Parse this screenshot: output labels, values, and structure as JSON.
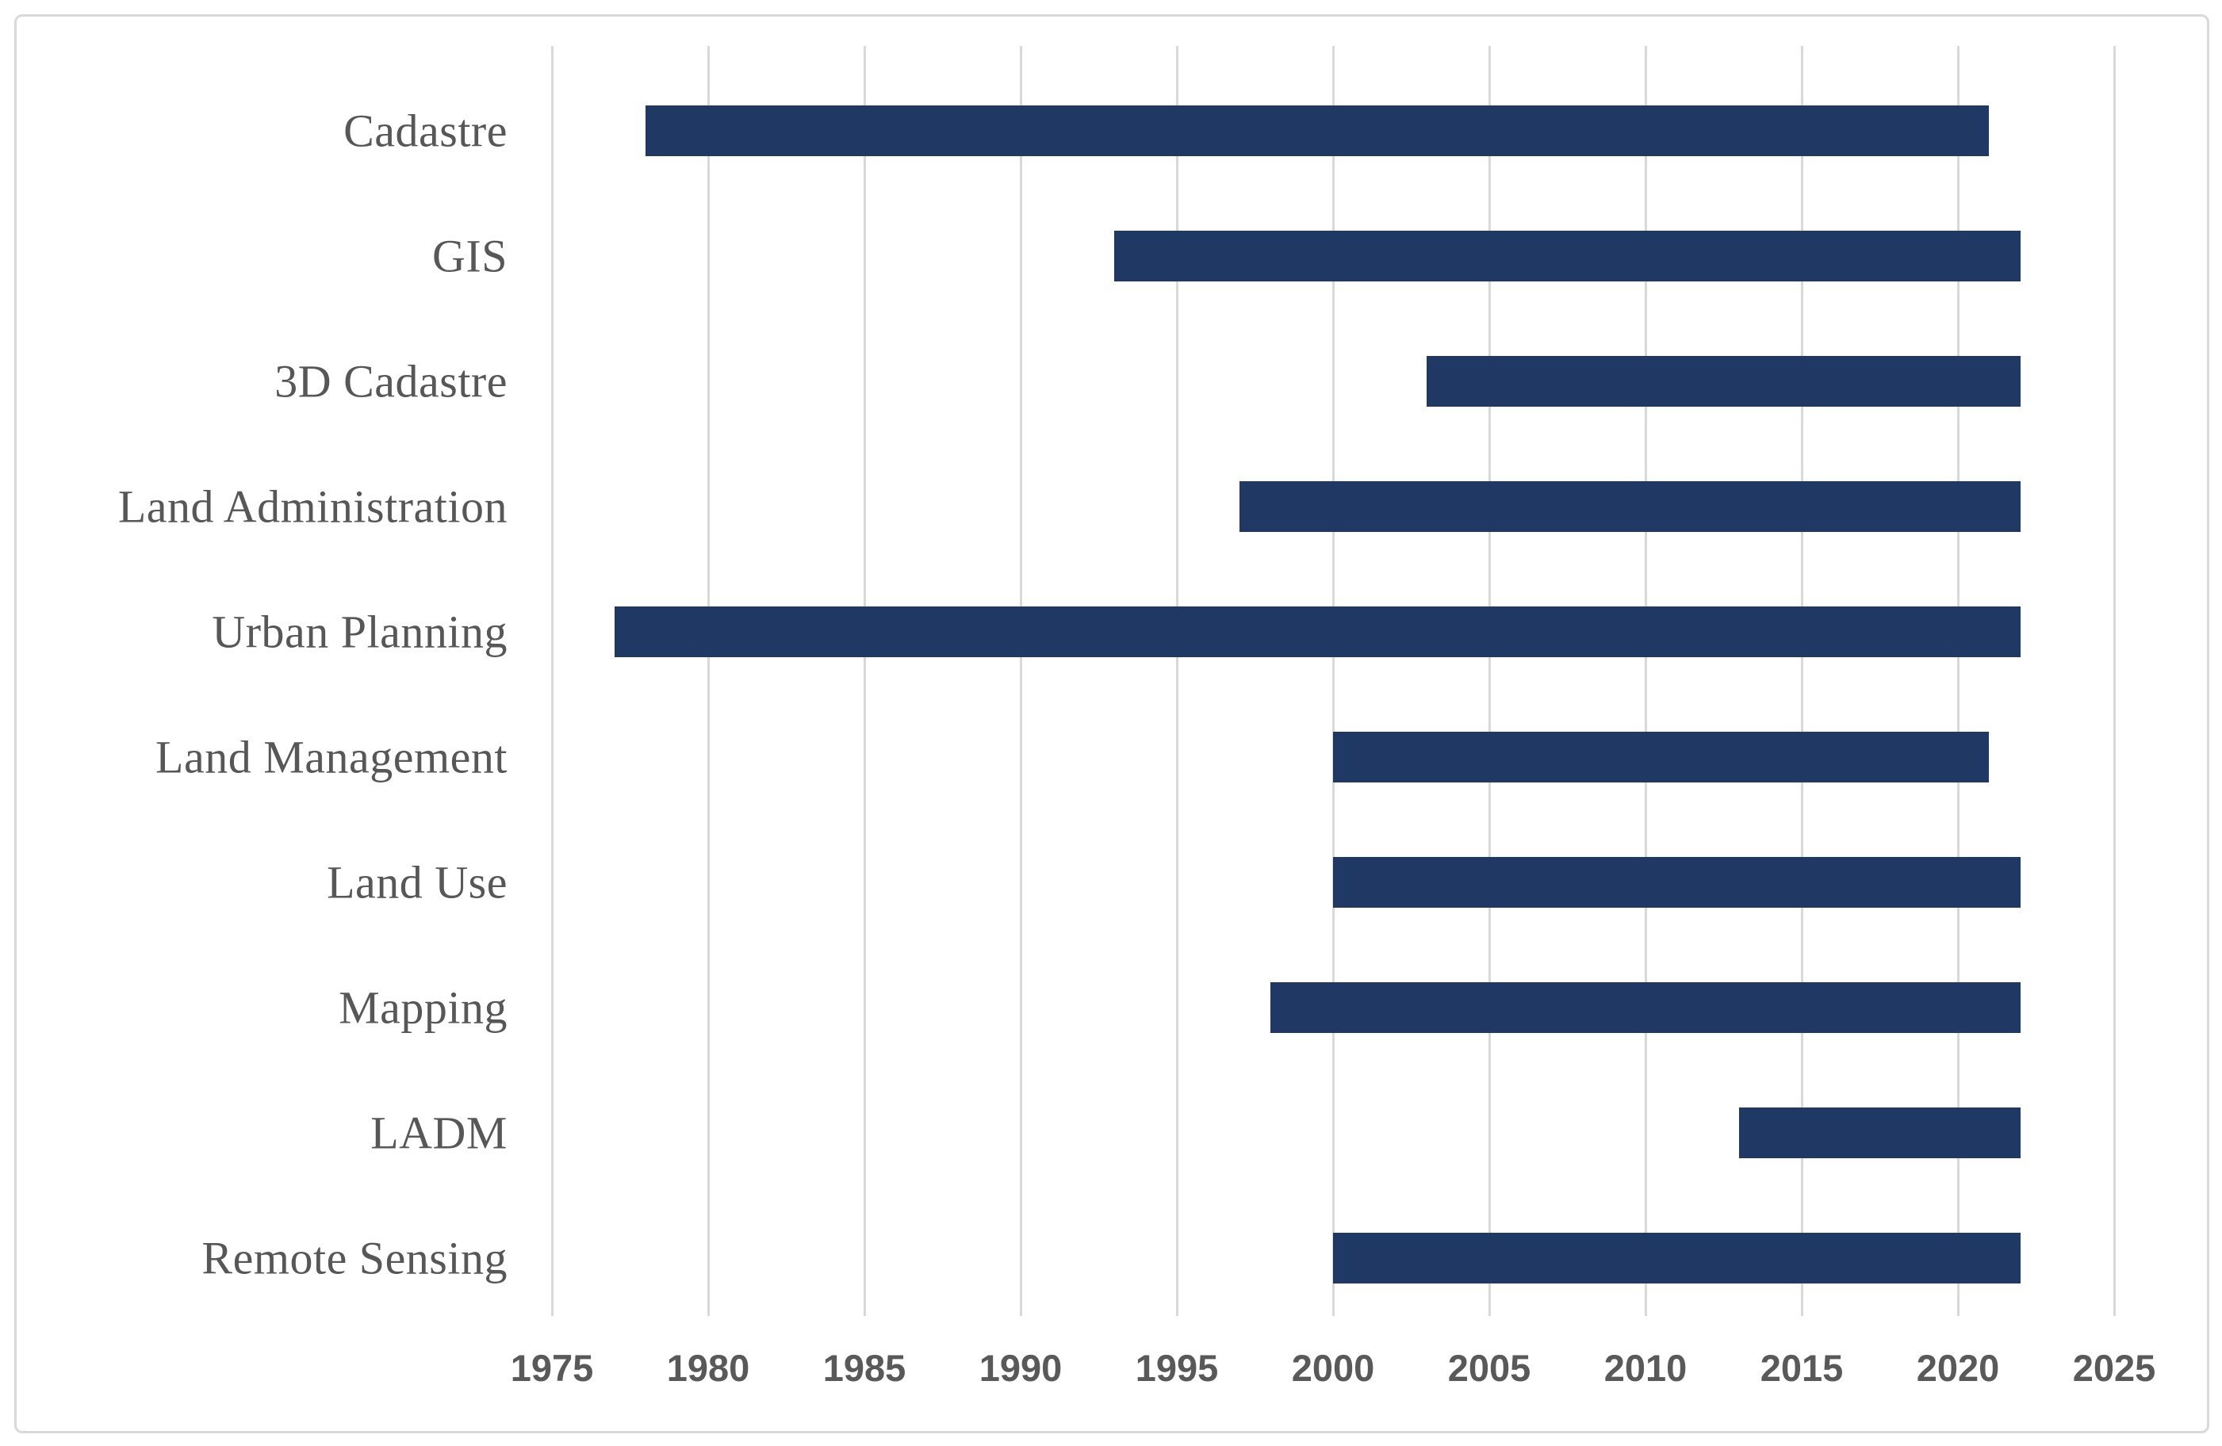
{
  "figure": {
    "background_color": "#ffffff",
    "border_color": "#d9d9d9"
  },
  "chart_data": {
    "type": "bar",
    "orientation": "horizontal",
    "title": "",
    "xlabel": "",
    "ylabel": "",
    "xlim": [
      1975,
      2025
    ],
    "x_ticks": [
      1975,
      1980,
      1985,
      1990,
      1995,
      2000,
      2005,
      2010,
      2015,
      2020,
      2025
    ],
    "grid": "vertical-only",
    "legend": "none",
    "bar_color": "#1F3864",
    "gridline_color": "#D9D9D9",
    "tick_label_color": "#595959",
    "category_label_color": "#575757",
    "categories": [
      "Cadastre",
      "GIS",
      "3D Cadastre",
      "Land Administration",
      "Urban Planning",
      "Land Management",
      "Land Use",
      "Mapping",
      "LADM",
      "Remote Sensing"
    ],
    "bars": [
      {
        "label": "Cadastre",
        "start": 1978,
        "end": 2021
      },
      {
        "label": "GIS",
        "start": 1993,
        "end": 2022
      },
      {
        "label": "3D Cadastre",
        "start": 2003,
        "end": 2022
      },
      {
        "label": "Land Administration",
        "start": 1997,
        "end": 2022
      },
      {
        "label": "Urban Planning",
        "start": 1977,
        "end": 2022
      },
      {
        "label": "Land Management",
        "start": 2000,
        "end": 2021
      },
      {
        "label": "Land Use",
        "start": 2000,
        "end": 2022
      },
      {
        "label": "Mapping",
        "start": 1998,
        "end": 2022
      },
      {
        "label": "LADM",
        "start": 2013,
        "end": 2022
      },
      {
        "label": "Remote Sensing",
        "start": 2000,
        "end": 2022
      }
    ]
  }
}
